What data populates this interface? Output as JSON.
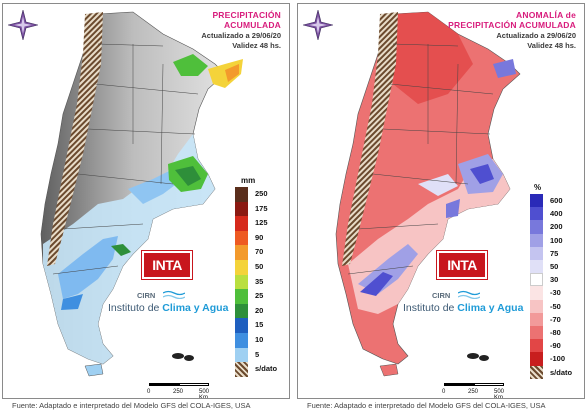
{
  "left_panel": {
    "title_line1": "PRECIPITACIÓN",
    "title_line2": "ACUMULADA",
    "updated": "Actualizado a 29/06/20",
    "validity": "Validez 48 hs.",
    "legend_unit": "mm",
    "legend": [
      {
        "label": "250",
        "color": "#5a2e1c"
      },
      {
        "label": "175",
        "color": "#8b1a12"
      },
      {
        "label": "125",
        "color": "#d62a1c"
      },
      {
        "label": "90",
        "color": "#ee5a22"
      },
      {
        "label": "70",
        "color": "#f39a2c"
      },
      {
        "label": "50",
        "color": "#f4d33a"
      },
      {
        "label": "35",
        "color": "#b9df3f"
      },
      {
        "label": "25",
        "color": "#4fbf3b"
      },
      {
        "label": "20",
        "color": "#2e8f3a"
      },
      {
        "label": "15",
        "color": "#1f5fbf"
      },
      {
        "label": "10",
        "color": "#3f8fe0"
      },
      {
        "label": "5",
        "color": "#9fd0f2"
      },
      {
        "label": "s/dato",
        "color": "hatch"
      }
    ]
  },
  "right_panel": {
    "title_line1": "ANOMALÍA de",
    "title_line2": "PRECIPITACIÓN ACUMULADA",
    "updated": "Actualizado a 29/06/20",
    "validity": "Validez 48 hs.",
    "legend_unit": "%",
    "legend": [
      {
        "label": "600",
        "color": "#2a2ab8"
      },
      {
        "label": "400",
        "color": "#4f4fd0"
      },
      {
        "label": "200",
        "color": "#7878dc"
      },
      {
        "label": "100",
        "color": "#a0a0e6"
      },
      {
        "label": "75",
        "color": "#c4c4f0"
      },
      {
        "label": "50",
        "color": "#e0e0f7"
      },
      {
        "label": "30",
        "color": "#ffffff"
      },
      {
        "label": "-30",
        "color": "#fbe4e4"
      },
      {
        "label": "-50",
        "color": "#f7c4c4"
      },
      {
        "label": "-70",
        "color": "#f29a9a"
      },
      {
        "label": "-80",
        "color": "#ec7272"
      },
      {
        "label": "-90",
        "color": "#e24646"
      },
      {
        "label": "-100",
        "color": "#c81e1e"
      },
      {
        "label": "s/dato",
        "color": "hatch"
      }
    ]
  },
  "logos": {
    "inta": "INTA",
    "cirn": "CIRN",
    "institute_prefix": "Instituto de ",
    "institute_highlight": "Clima y Agua"
  },
  "scale": {
    "t0": "0",
    "t1": "250",
    "t2": "500 Km"
  },
  "footer": "Fuente: Adaptado e interpretado del Modelo GFS del COLA-IGES, USA"
}
